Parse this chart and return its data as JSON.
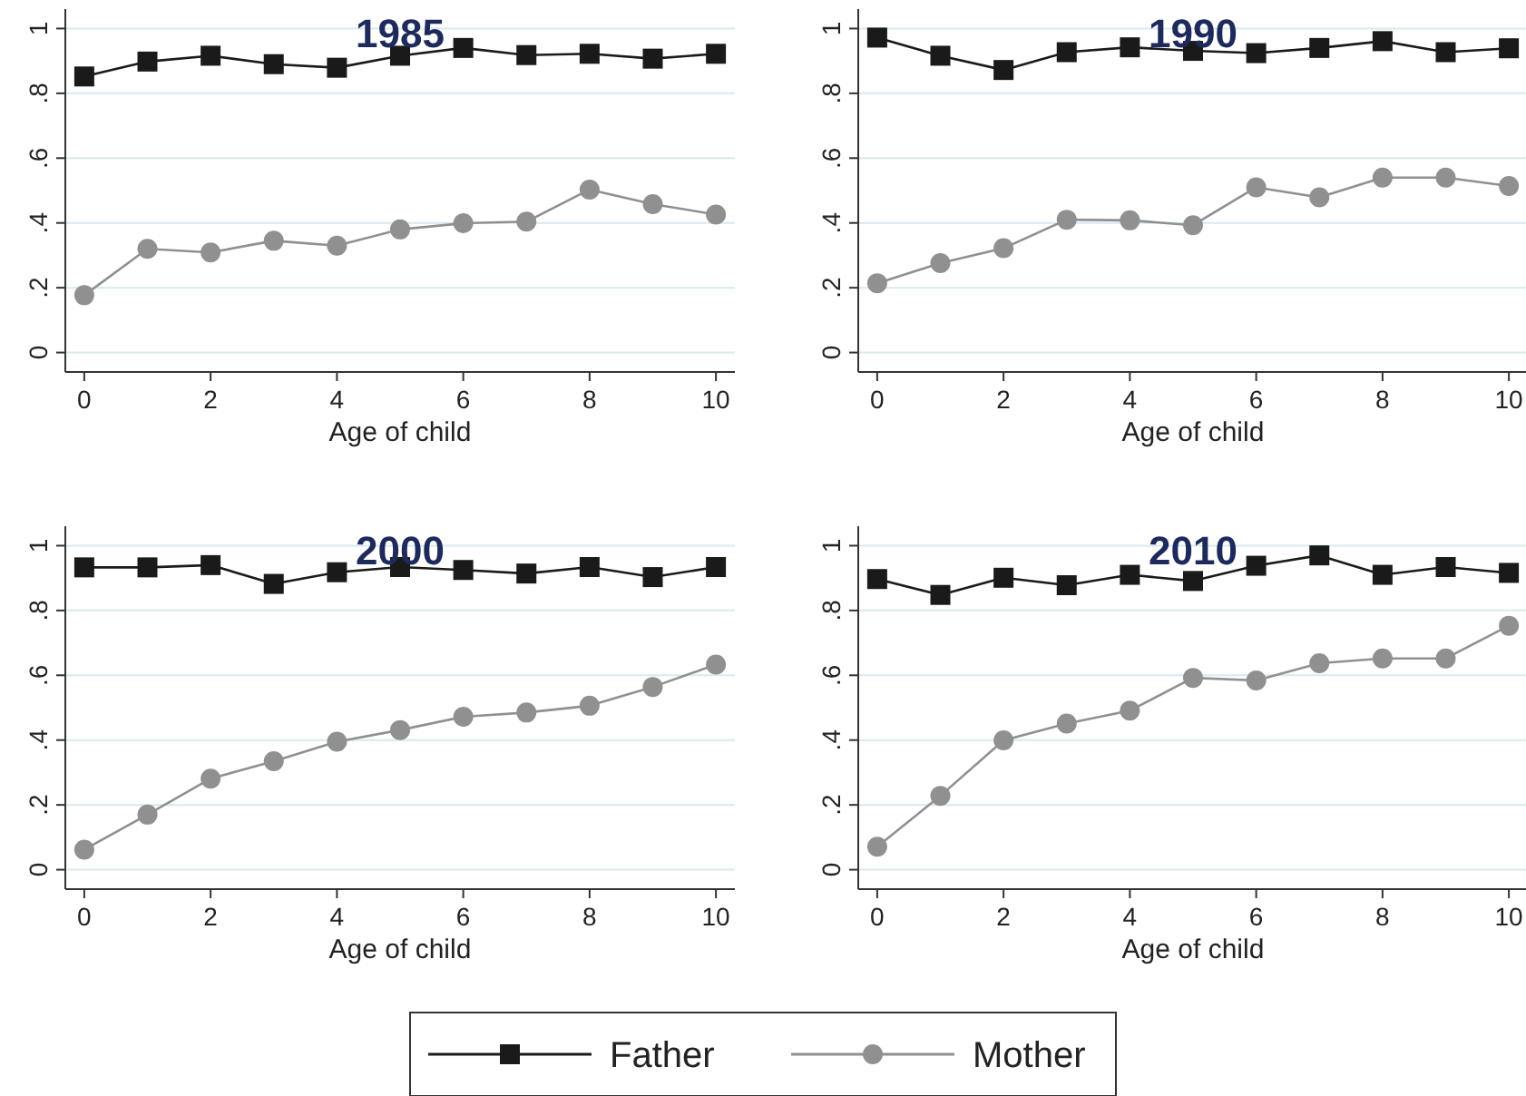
{
  "chart_data": [
    {
      "type": "line",
      "title": "1985",
      "xlabel": "Age of child",
      "x": [
        0,
        1,
        2,
        3,
        4,
        5,
        6,
        7,
        8,
        9,
        10
      ],
      "xlim": [
        -0.3,
        10.3
      ],
      "xticks": [
        0,
        2,
        4,
        6,
        8,
        10
      ],
      "ylim": [
        -0.06,
        1.06
      ],
      "yticks": [
        {
          "value": 0,
          "label": "0"
        },
        {
          "value": 0.2,
          "label": ".2"
        },
        {
          "value": 0.4,
          "label": ".4"
        },
        {
          "value": 0.6,
          "label": ".6"
        },
        {
          "value": 0.8,
          "label": ".8"
        },
        {
          "value": 1,
          "label": "1"
        }
      ],
      "grid": "y",
      "legend": "bottom",
      "series": [
        {
          "name": "Father",
          "color": "#1a1a1a",
          "marker": "square",
          "values": [
            0.852,
            0.898,
            0.916,
            0.89,
            0.879,
            0.916,
            0.94,
            0.918,
            0.922,
            0.907,
            0.922
          ]
        },
        {
          "name": "Mother",
          "color": "#909090",
          "marker": "circle",
          "values": [
            0.177,
            0.32,
            0.309,
            0.345,
            0.33,
            0.38,
            0.399,
            0.404,
            0.503,
            0.458,
            0.426
          ]
        }
      ]
    },
    {
      "type": "line",
      "title": "1990",
      "xlabel": "Age of child",
      "x": [
        0,
        1,
        2,
        3,
        4,
        5,
        6,
        7,
        8,
        9,
        10
      ],
      "xlim": [
        -0.3,
        10.3
      ],
      "xticks": [
        0,
        2,
        4,
        6,
        8,
        10
      ],
      "ylim": [
        -0.06,
        1.06
      ],
      "yticks": [
        {
          "value": 0,
          "label": "0"
        },
        {
          "value": 0.2,
          "label": ".2"
        },
        {
          "value": 0.4,
          "label": ".4"
        },
        {
          "value": 0.6,
          "label": ".6"
        },
        {
          "value": 0.8,
          "label": ".8"
        },
        {
          "value": 1,
          "label": "1"
        }
      ],
      "grid": "y",
      "series": [
        {
          "color": "#1a1a1a",
          "marker": "square",
          "values": [
            0.972,
            0.916,
            0.872,
            0.927,
            0.942,
            0.931,
            0.924,
            0.94,
            0.961,
            0.927,
            0.939
          ]
        },
        {
          "color": "#909090",
          "marker": "circle",
          "values": [
            0.214,
            0.276,
            0.322,
            0.41,
            0.408,
            0.393,
            0.51,
            0.479,
            0.54,
            0.54,
            0.514
          ]
        }
      ]
    },
    {
      "type": "line",
      "title": "2000",
      "xlabel": "Age of child",
      "x": [
        0,
        1,
        2,
        3,
        4,
        5,
        6,
        7,
        8,
        9,
        10
      ],
      "xlim": [
        -0.3,
        10.3
      ],
      "xticks": [
        0,
        2,
        4,
        6,
        8,
        10
      ],
      "ylim": [
        -0.06,
        1.06
      ],
      "yticks": [
        {
          "value": 0,
          "label": "0"
        },
        {
          "value": 0.2,
          "label": ".2"
        },
        {
          "value": 0.4,
          "label": ".4"
        },
        {
          "value": 0.6,
          "label": ".6"
        },
        {
          "value": 0.8,
          "label": ".8"
        },
        {
          "value": 1,
          "label": "1"
        }
      ],
      "grid": "y",
      "series": [
        {
          "color": "#1a1a1a",
          "marker": "square",
          "values": [
            0.933,
            0.933,
            0.94,
            0.882,
            0.918,
            0.934,
            0.925,
            0.914,
            0.934,
            0.903,
            0.934
          ]
        },
        {
          "color": "#909090",
          "marker": "circle",
          "values": [
            0.062,
            0.17,
            0.281,
            0.335,
            0.395,
            0.431,
            0.472,
            0.485,
            0.506,
            0.564,
            0.633
          ]
        }
      ]
    },
    {
      "type": "line",
      "title": "2010",
      "xlabel": "Age of child",
      "x": [
        0,
        1,
        2,
        3,
        4,
        5,
        6,
        7,
        8,
        9,
        10
      ],
      "xlim": [
        -0.3,
        10.3
      ],
      "xticks": [
        0,
        2,
        4,
        6,
        8,
        10
      ],
      "ylim": [
        -0.06,
        1.06
      ],
      "yticks": [
        {
          "value": 0,
          "label": "0"
        },
        {
          "value": 0.2,
          "label": ".2"
        },
        {
          "value": 0.4,
          "label": ".4"
        },
        {
          "value": 0.6,
          "label": ".6"
        },
        {
          "value": 0.8,
          "label": ".8"
        },
        {
          "value": 1,
          "label": "1"
        }
      ],
      "grid": "y",
      "series": [
        {
          "color": "#1a1a1a",
          "marker": "square",
          "values": [
            0.897,
            0.848,
            0.901,
            0.878,
            0.91,
            0.891,
            0.938,
            0.97,
            0.91,
            0.934,
            0.916
          ]
        },
        {
          "color": "#909090",
          "marker": "circle",
          "values": [
            0.071,
            0.228,
            0.399,
            0.451,
            0.491,
            0.592,
            0.584,
            0.637,
            0.652,
            0.652,
            0.753
          ]
        }
      ]
    }
  ]
}
